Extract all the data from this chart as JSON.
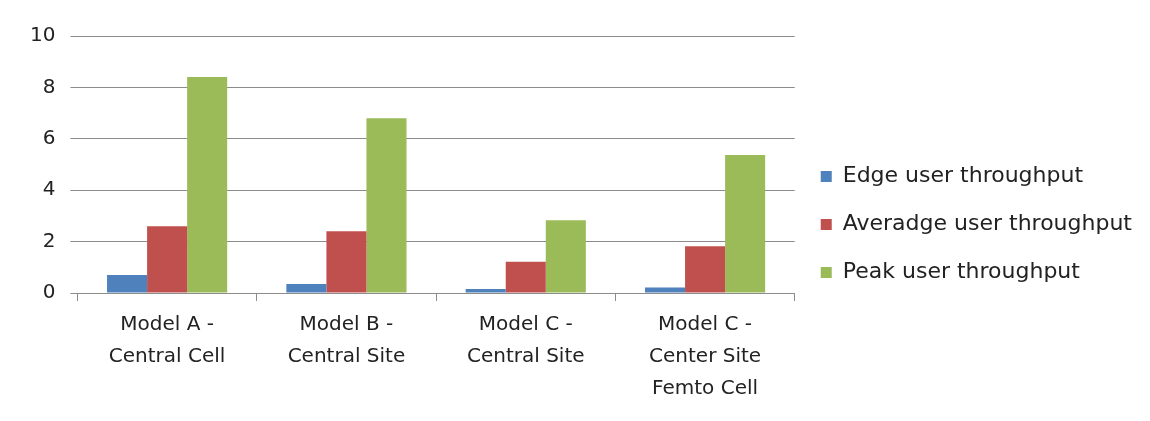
{
  "chart_data": {
    "type": "bar",
    "categories": [
      "Model A - Central Cell",
      "Model B - Central Site",
      "Model C - Central Site",
      "Model C - Center Site Femto Cell"
    ],
    "series": [
      {
        "name": "Edge user throughput",
        "color": "#4f81bd",
        "values": [
          0.7,
          0.35,
          0.16,
          0.21
        ]
      },
      {
        "name": "Averadge user throughput",
        "color": "#c0504d",
        "values": [
          2.6,
          2.4,
          1.22,
          1.82
        ]
      },
      {
        "name": "Peak user throughput",
        "color": "#9bbb59",
        "values": [
          8.4,
          6.8,
          2.83,
          5.37
        ]
      }
    ],
    "ylim": [
      0,
      10
    ],
    "yticks": [
      0,
      2,
      4,
      6,
      8,
      10
    ],
    "grid": "y",
    "legend": "right"
  }
}
